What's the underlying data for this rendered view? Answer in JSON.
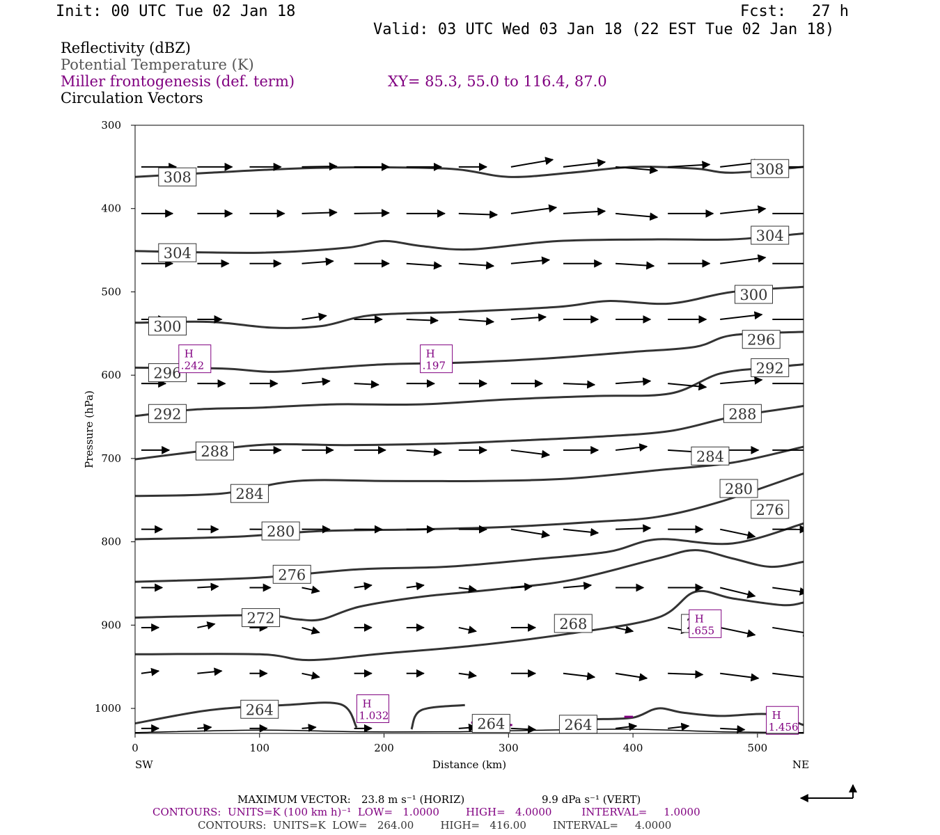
{
  "header": {
    "init": "Init: 00 UTC Tue 02 Jan 18",
    "fcst_label": "Fcst:",
    "fcst_value": "27 h",
    "valid": "Valid: 03 UTC Wed 03 Jan 18 (22 EST Tue 02 Jan 18)"
  },
  "legend": {
    "reflectivity": "Reflectivity (dBZ)",
    "theta": "Potential Temperature (K)",
    "frontogenesis": "Miller frontogenesis (def. term)",
    "xy": "XY=  85.3, 55.0 to 116.4, 87.0",
    "vectors": "Circulation Vectors"
  },
  "colors": {
    "theta": "#333333",
    "frontogenesis": "#800080",
    "vectors": "#000000",
    "legend_theta": "#555555"
  },
  "footer": {
    "max_vector_label": "MAXIMUM VECTOR:",
    "max_vector_horiz": "23.8 m s⁻¹ (HORIZ)",
    "max_vector_vert": "9.9 dPa s⁻¹ (VERT)",
    "contours1": "CONTOURS:  UNITS=K (100 km h)⁻¹  LOW=   1.0000        HIGH=   4.0000         INTERVAL=     1.0000",
    "contours2": "CONTOURS:  UNITS=K  LOW=   264.00        HIGH=   416.00        INTERVAL=     4.0000"
  },
  "chart_data": {
    "type": "line",
    "title": "",
    "xlabel": "Distance (km)",
    "ylabel": "Pressure (hPa)",
    "xlim": [
      0,
      537
    ],
    "ylim": [
      1030,
      300
    ],
    "y_scale": "linear (inverted)",
    "x_ticks": [
      0,
      100,
      200,
      300,
      400,
      500
    ],
    "y_ticks": [
      300,
      400,
      500,
      600,
      700,
      800,
      900,
      1000
    ],
    "x_end_labels": {
      "left": "SW",
      "right": "NE"
    },
    "theta_contours": [
      {
        "name": "308",
        "points": [
          [
            0,
            362
          ],
          [
            60,
            357
          ],
          [
            150,
            351
          ],
          [
            250,
            352
          ],
          [
            300,
            362
          ],
          [
            350,
            357
          ],
          [
            400,
            350
          ],
          [
            450,
            352
          ],
          [
            480,
            357
          ],
          [
            537,
            350
          ]
        ],
        "labels": [
          [
            34,
            362
          ],
          [
            510,
            352
          ]
        ]
      },
      {
        "name": "304",
        "points": [
          [
            0,
            451
          ],
          [
            100,
            453
          ],
          [
            170,
            447
          ],
          [
            200,
            439
          ],
          [
            230,
            445
          ],
          [
            270,
            449
          ],
          [
            340,
            439
          ],
          [
            420,
            437
          ],
          [
            480,
            437
          ],
          [
            537,
            430
          ]
        ],
        "labels": [
          [
            34,
            453
          ],
          [
            510,
            432
          ]
        ]
      },
      {
        "name": "300",
        "points": [
          [
            0,
            537
          ],
          [
            60,
            536
          ],
          [
            110,
            543
          ],
          [
            150,
            541
          ],
          [
            190,
            528
          ],
          [
            260,
            524
          ],
          [
            340,
            518
          ],
          [
            380,
            511
          ],
          [
            430,
            514
          ],
          [
            480,
            500
          ],
          [
            537,
            494
          ]
        ],
        "labels": [
          [
            26,
            541
          ],
          [
            497,
            503
          ]
        ]
      },
      {
        "name": "296",
        "points": [
          [
            0,
            591
          ],
          [
            70,
            592
          ],
          [
            110,
            596
          ],
          [
            150,
            592
          ],
          [
            200,
            587
          ],
          [
            260,
            585
          ],
          [
            330,
            580
          ],
          [
            400,
            572
          ],
          [
            450,
            566
          ],
          [
            480,
            552
          ],
          [
            537,
            548
          ]
        ],
        "labels": [
          [
            26,
            597
          ],
          [
            503,
            557
          ]
        ]
      },
      {
        "name": "292",
        "points": [
          [
            0,
            649
          ],
          [
            50,
            641
          ],
          [
            100,
            639
          ],
          [
            160,
            635
          ],
          [
            230,
            635
          ],
          [
            300,
            629
          ],
          [
            370,
            625
          ],
          [
            430,
            622
          ],
          [
            470,
            598
          ],
          [
            510,
            591
          ],
          [
            537,
            587
          ]
        ],
        "labels": [
          [
            26,
            646
          ],
          [
            510,
            591
          ]
        ]
      },
      {
        "name": "288",
        "points": [
          [
            0,
            701
          ],
          [
            60,
            690
          ],
          [
            110,
            683
          ],
          [
            170,
            684
          ],
          [
            250,
            682
          ],
          [
            300,
            679
          ],
          [
            370,
            674
          ],
          [
            430,
            667
          ],
          [
            480,
            650
          ],
          [
            537,
            637
          ]
        ],
        "labels": [
          [
            64,
            691
          ],
          [
            488,
            646
          ]
        ]
      },
      {
        "name": "284",
        "points": [
          [
            0,
            745
          ],
          [
            70,
            742
          ],
          [
            130,
            727
          ],
          [
            200,
            727
          ],
          [
            280,
            727
          ],
          [
            350,
            724
          ],
          [
            420,
            714
          ],
          [
            480,
            705
          ],
          [
            537,
            686
          ]
        ],
        "labels": [
          [
            92,
            742
          ],
          [
            462,
            697
          ]
        ]
      },
      {
        "name": "280",
        "points": [
          [
            0,
            797
          ],
          [
            80,
            794
          ],
          [
            150,
            787
          ],
          [
            230,
            785
          ],
          [
            300,
            782
          ],
          [
            370,
            776
          ],
          [
            420,
            770
          ],
          [
            470,
            752
          ],
          [
            537,
            718
          ]
        ],
        "labels": [
          [
            117,
            787
          ],
          [
            485,
            736
          ]
        ]
      },
      {
        "name": "276",
        "points": [
          [
            0,
            848
          ],
          [
            100,
            843
          ],
          [
            180,
            833
          ],
          [
            250,
            830
          ],
          [
            320,
            821
          ],
          [
            380,
            812
          ],
          [
            420,
            797
          ],
          [
            480,
            802
          ],
          [
            537,
            778
          ]
        ],
        "labels": [
          [
            126,
            839
          ],
          [
            510,
            761
          ]
        ]
      },
      {
        "name": "272",
        "points": [
          [
            0,
            891
          ],
          [
            100,
            888
          ],
          [
            130,
            893
          ],
          [
            150,
            893
          ],
          [
            180,
            878
          ],
          [
            230,
            866
          ],
          [
            290,
            857
          ],
          [
            350,
            846
          ],
          [
            420,
            820
          ],
          [
            450,
            810
          ],
          [
            480,
            820
          ],
          [
            510,
            830
          ],
          [
            537,
            824
          ]
        ],
        "labels": [
          [
            101,
            891
          ],
          [
            454,
            898
          ]
        ]
      },
      {
        "name": "268",
        "points": [
          [
            0,
            935
          ],
          [
            100,
            935
          ],
          [
            140,
            942
          ],
          [
            200,
            934
          ],
          [
            270,
            925
          ],
          [
            350,
            910
          ],
          [
            420,
            891
          ],
          [
            450,
            860
          ],
          [
            480,
            868
          ],
          [
            520,
            876
          ],
          [
            537,
            873
          ]
        ],
        "labels": [
          [
            352,
            898
          ]
        ]
      },
      {
        "name": "264",
        "points": [
          [
            0,
            1018
          ],
          [
            60,
            1002
          ],
          [
            120,
            996
          ],
          [
            165,
            995
          ],
          [
            178,
            1023
          ]
        ],
        "labels": [
          [
            100,
            1001
          ],
          [
            286,
            1018
          ],
          [
            356,
            1019
          ]
        ]
      },
      {
        "name": "264b",
        "points": [
          [
            222,
            1025
          ],
          [
            230,
            1002
          ],
          [
            265,
            996
          ]
        ],
        "labels": []
      },
      {
        "name": "264c",
        "points": [
          [
            370,
            1013
          ],
          [
            400,
            1011
          ],
          [
            420,
            1000
          ],
          [
            440,
            1005
          ],
          [
            470,
            1009
          ],
          [
            510,
            1007
          ],
          [
            537,
            1020
          ]
        ],
        "labels": []
      }
    ],
    "surface": [
      [
        0,
        1029
      ],
      [
        100,
        1026
      ],
      [
        180,
        1028
      ],
      [
        260,
        1028
      ],
      [
        330,
        1026
      ],
      [
        400,
        1025
      ],
      [
        470,
        1028
      ],
      [
        537,
        1029
      ]
    ],
    "frontogenesis_maxima": [
      {
        "label": "H",
        "value": ".242",
        "x": 48,
        "p": 582
      },
      {
        "label": "H",
        "value": ".197",
        "x": 242,
        "p": 582
      },
      {
        "label": "H",
        "value": ".655",
        "x": 458,
        "p": 900
      },
      {
        "label": "H",
        "value": "1.032",
        "x": 191,
        "p": 1002
      },
      {
        "label": "H",
        "value": "1.456",
        "x": 520,
        "p": 1016
      }
    ],
    "frontogenesis_contours": [
      {
        "value": "1",
        "points": [
          [
            270,
            1017
          ],
          [
            285,
            1018
          ],
          [
            303,
            1020
          ]
        ]
      },
      {
        "value": "1",
        "points": [
          [
            393,
            1010
          ],
          [
            400,
            1010
          ]
        ]
      }
    ],
    "vector_levels": [
      350,
      406,
      466,
      533,
      610,
      690,
      785,
      855,
      903,
      958,
      1024
    ],
    "vector_x": [
      5,
      50,
      92,
      134,
      176,
      218,
      260,
      302,
      344,
      386,
      428,
      470,
      512
    ],
    "vector_scale_km": 28,
    "vectors": [
      {
        "p": 350,
        "u": [
          1.0,
          1.0,
          0.9,
          1.0,
          1.0,
          1.0,
          0.8,
          1.2,
          1.2,
          1.2,
          1.2,
          1.2,
          1.1
        ],
        "w": [
          0.0,
          0.0,
          0.0,
          0.05,
          0.0,
          0.0,
          0.0,
          0.6,
          0.4,
          -0.3,
          0.2,
          0.4,
          0.0
        ]
      },
      {
        "p": 406,
        "u": [
          0.9,
          1.0,
          1.0,
          1.0,
          1.0,
          1.1,
          1.1,
          1.3,
          1.2,
          1.2,
          1.3,
          1.3,
          1.3
        ],
        "w": [
          0.0,
          0.0,
          0.0,
          0.1,
          0.05,
          0.0,
          -0.1,
          0.5,
          0.2,
          -0.3,
          0.0,
          0.4,
          0.0
        ]
      },
      {
        "p": 466,
        "u": [
          0.9,
          0.9,
          0.9,
          0.9,
          1.0,
          1.0,
          1.0,
          1.1,
          1.1,
          1.1,
          1.2,
          1.3,
          1.2
        ],
        "w": [
          0.0,
          0.0,
          0.0,
          0.2,
          0.0,
          -0.2,
          -0.2,
          0.3,
          0.0,
          -0.2,
          0.0,
          0.5,
          0.0
        ]
      },
      {
        "p": 533,
        "u": [
          0.7,
          0.7,
          0.0,
          0.7,
          0.8,
          0.9,
          1.0,
          1.0,
          1.0,
          1.0,
          1.1,
          1.2,
          1.1
        ],
        "w": [
          0.0,
          0.0,
          0.0,
          0.3,
          0.0,
          -0.1,
          -0.2,
          0.2,
          0.0,
          0.0,
          0.0,
          0.4,
          0.0
        ]
      },
      {
        "p": 610,
        "u": [
          0.7,
          0.8,
          0.8,
          0.8,
          0.7,
          0.8,
          0.8,
          0.9,
          0.9,
          1.0,
          1.1,
          1.2,
          1.1
        ],
        "w": [
          0.0,
          0.0,
          0.0,
          0.2,
          -0.1,
          0.0,
          0.0,
          0.0,
          -0.1,
          0.2,
          -0.3,
          0.3,
          0.0
        ]
      },
      {
        "p": 690,
        "u": [
          0.8,
          0.9,
          0.9,
          0.9,
          0.9,
          1.0,
          0.8,
          1.1,
          1.0,
          0.9,
          1.1,
          1.1,
          1.1
        ],
        "w": [
          0.0,
          0.0,
          0.0,
          0.0,
          0.0,
          -0.2,
          0.0,
          -0.4,
          0.0,
          0.3,
          -0.2,
          0.0,
          0.0
        ]
      },
      {
        "p": 785,
        "u": [
          0.6,
          0.6,
          0.6,
          0.8,
          0.8,
          0.8,
          0.8,
          1.1,
          1.0,
          1.0,
          1.0,
          1.0,
          1.0
        ],
        "w": [
          0.0,
          0.0,
          0.0,
          0.0,
          0.0,
          0.0,
          0.0,
          -0.5,
          -0.3,
          0.1,
          0.0,
          -0.6,
          0.0
        ]
      },
      {
        "p": 855,
        "u": [
          0.6,
          0.6,
          0.6,
          0.5,
          0.5,
          0.5,
          0.5,
          0.6,
          0.8,
          0.8,
          1.0,
          1.0,
          1.0
        ],
        "w": [
          0.0,
          0.1,
          0.0,
          -0.3,
          0.2,
          0.2,
          -0.2,
          0.1,
          0.2,
          0.0,
          0.0,
          -0.7,
          -0.4
        ]
      },
      {
        "p": 903,
        "u": [
          0.5,
          0.5,
          0.5,
          0.5,
          0.5,
          0.5,
          0.5,
          0.7,
          0.8,
          0.5,
          0.6,
          1.0,
          1.1
        ],
        "w": [
          0.0,
          0.3,
          0.0,
          -0.4,
          0.0,
          0.0,
          -0.3,
          0.0,
          0.0,
          -0.3,
          -0.3,
          -0.6,
          -0.5
        ]
      },
      {
        "p": 958,
        "u": [
          0.5,
          0.7,
          0.5,
          0.5,
          0.5,
          0.5,
          0.5,
          0.7,
          0.9,
          0.9,
          1.0,
          1.1,
          1.2
        ],
        "w": [
          0.2,
          0.2,
          0.0,
          -0.3,
          0.0,
          0.0,
          -0.2,
          0.0,
          -0.3,
          -0.4,
          -0.1,
          -0.4,
          -0.4
        ]
      },
      {
        "p": 1024,
        "u": [
          0.5,
          0.4,
          0.5,
          0.4,
          0.5,
          0.0,
          0.5,
          0.7,
          0.6,
          0.6,
          0.6,
          0.7,
          0.0
        ],
        "w": [
          0.0,
          0.1,
          0.0,
          0.1,
          0.0,
          0.0,
          0.1,
          -0.1,
          0.0,
          0.2,
          0.2,
          -0.1,
          0.0
        ]
      }
    ],
    "grid": false,
    "legend": "top-left text list"
  }
}
